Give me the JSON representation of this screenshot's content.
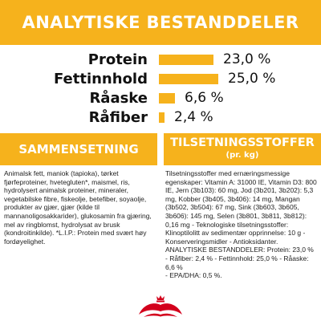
{
  "header": {
    "title": "ANALYTISKE BESTANDDELER"
  },
  "analysis": [
    {
      "name": "Protein",
      "value_label": "23,0 %",
      "value": 23.0
    },
    {
      "name": "Fettinnhold",
      "value_label": "25,0 %",
      "value": 25.0
    },
    {
      "name": "Råaske",
      "value_label": "6,6 %",
      "value": 6.6
    },
    {
      "name": "Råfiber",
      "value_label": "2,4 %",
      "value": 2.4
    }
  ],
  "composition": {
    "title": "SAMMENSETNING",
    "text": "Animalsk fett, maniok (tapioka), tørket fjørfeproteiner, hvetegluten*, maismel, ris, hydrolysert animalsk proteiner, mineraler, vegetabilske fibre, fiskeolje, betefiber, soyaolje, produkter av gjær, gjær (kilde til mannanoligosakkarider), glukosamin fra gjæring, mel av ringblomst, hydrolysat av brusk (kondroitinkilde). *L.I.P.: Protein med svært høy fordøyelighet."
  },
  "additives": {
    "title": "TILSETNINGSSTOFFER",
    "subtitle": "(pr. kg)",
    "lines": [
      "Tilsetningsstoffer med ernæringsmessige egenskaper: Vitamin A: 31000 IE, Vitamin D3: 800 IE, Jern (3b103): 60 mg, Jod (3b201, 3b202): 5,3 mg, Kobber (3b405, 3b406): 14 mg, Mangan (3b502, 3b504): 67 mg, Sink (3b603, 3b605, 3b606): 145 mg, Selen (3b801, 3b811, 3b812): 0,16 mg - Teknologiske tilsetningsstoffer: Klinoptilolitt av sedimentær opprinnelse: 10 g - Konserveringsmidler - Antioksidanter.",
      "ANALYTISKE BESTANDDELER: Protein: 23,0 %",
      "- Råfiber: 2,4 % - Fettinnhold: 25,0 % - Råaske: 6,6 %",
      "- EPA/DHA: 0,5 %."
    ]
  },
  "colors": {
    "accent": "#f6b21c",
    "logo_red": "#d3001c"
  }
}
